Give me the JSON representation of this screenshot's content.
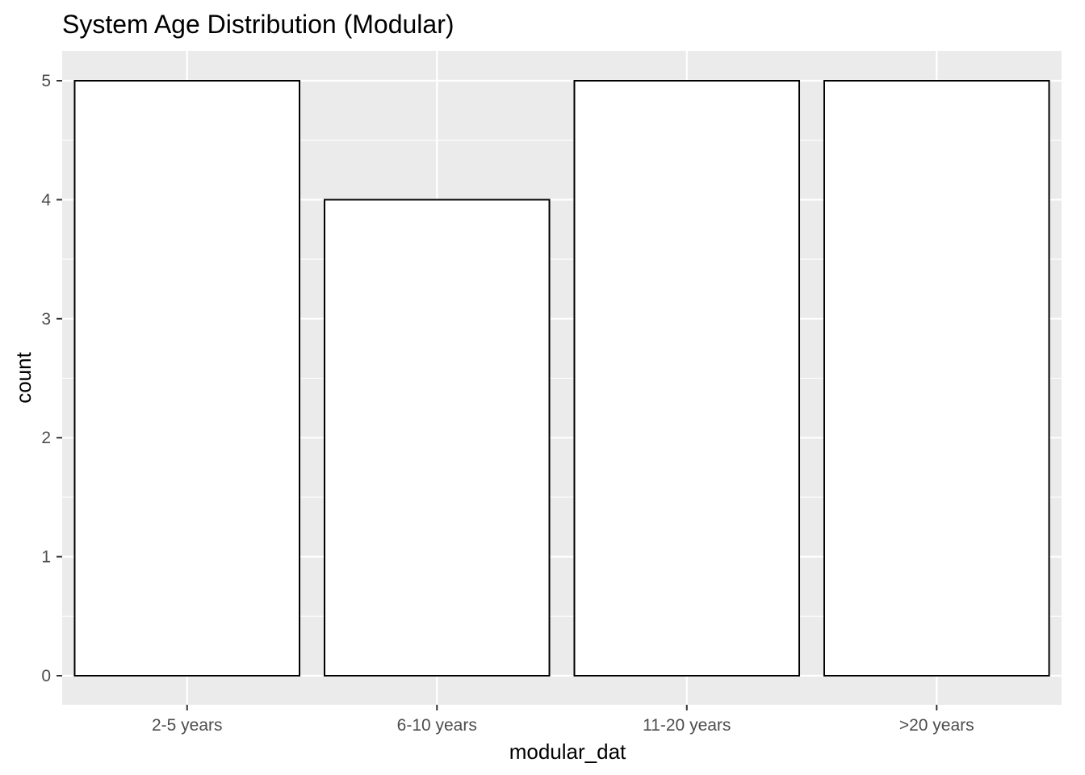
{
  "chart_data": {
    "type": "bar",
    "title": "System Age Distribution (Modular)",
    "xlabel": "modular_dat",
    "ylabel": "count",
    "categories": [
      "2-5 years",
      "6-10 years",
      "11-20 years",
      ">20 years"
    ],
    "values": [
      5,
      4,
      5,
      5
    ],
    "ylim": [
      0,
      5.25
    ],
    "yticks": [
      0,
      1,
      2,
      3,
      4,
      5
    ],
    "ytick_labels": [
      "0",
      "1",
      "2",
      "3",
      "4",
      "5"
    ],
    "grid": true,
    "legend": "none",
    "colors": {
      "panel_background": "#ebebeb",
      "grid_line": "#ffffff",
      "bar_fill": "#ffffff",
      "bar_outline": "#000000",
      "tick_mark": "#333333",
      "tick_label": "#4d4d4d"
    }
  }
}
